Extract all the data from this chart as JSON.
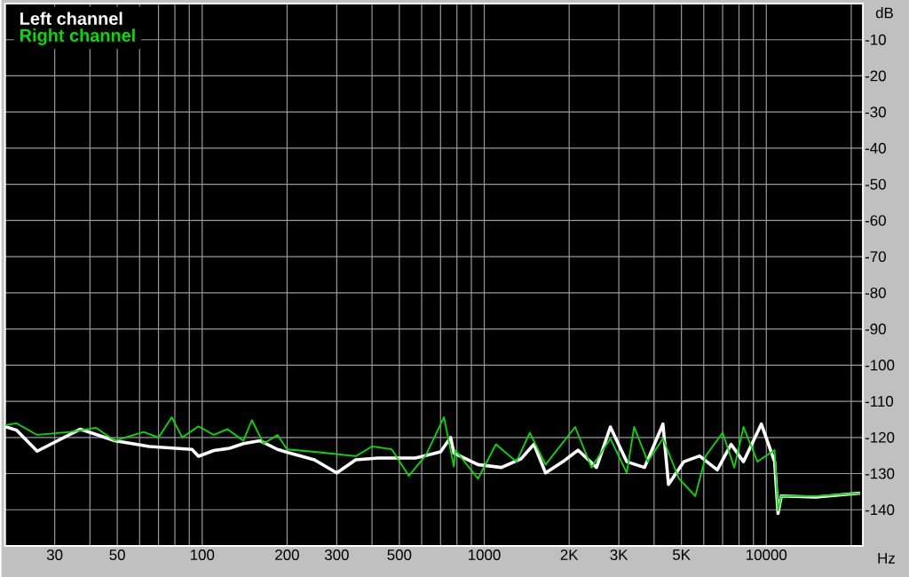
{
  "chart_data": {
    "type": "line",
    "xlabel": "Hz",
    "ylabel": "dB",
    "log": "x",
    "grid": true,
    "legend": "top left",
    "marker": "none",
    "xlim": [
      20,
      22000
    ],
    "ylim": [
      -150,
      0
    ],
    "xticks": [
      {
        "value": 20,
        "label": null
      },
      30,
      {
        "value": 40,
        "label": null
      },
      50,
      {
        "value": 60,
        "label": null
      },
      {
        "value": 70,
        "label": null
      },
      {
        "value": 80,
        "label": null
      },
      {
        "value": 90,
        "label": null
      },
      100,
      200,
      300,
      {
        "value": 400,
        "label": null
      },
      500,
      {
        "value": 600,
        "label": null
      },
      {
        "value": 700,
        "label": null
      },
      {
        "value": 800,
        "label": null
      },
      {
        "value": 900,
        "label": null
      },
      1000,
      {
        "value": 2000,
        "label": "2K"
      },
      {
        "value": 3000,
        "label": "3K"
      },
      {
        "value": 4000,
        "label": null
      },
      {
        "value": 5000,
        "label": "5K"
      },
      {
        "value": 6000,
        "label": null
      },
      {
        "value": 7000,
        "label": null
      },
      {
        "value": 8000,
        "label": null
      },
      {
        "value": 9000,
        "label": null
      },
      10000,
      {
        "value": 20000,
        "label": null
      }
    ],
    "yticks": [
      -10,
      -20,
      -30,
      -40,
      -50,
      -60,
      -70,
      -80,
      -90,
      -100,
      -110,
      -120,
      -130,
      -140
    ],
    "series": [
      {
        "name": "Left channel",
        "color": "#ffffff",
        "x": [
          20,
          22,
          26,
          37,
          49,
          65,
          92,
          97,
          110,
          125,
          140,
          160,
          185,
          200,
          250,
          300,
          350,
          420,
          570,
          700,
          760,
          780,
          950,
          1150,
          1350,
          1500,
          1650,
          1900,
          2150,
          2500,
          2800,
          3200,
          3700,
          4300,
          4500,
          5100,
          5800,
          6700,
          7500,
          8300,
          9600,
          10700,
          11000,
          11300,
          15000,
          21500
        ],
        "values": [
          -117,
          -118,
          -123.8,
          -117.7,
          -120.9,
          -122.5,
          -123.3,
          -125.2,
          -123.6,
          -123,
          -121.7,
          -120.9,
          -123.3,
          -124.1,
          -126.2,
          -129.8,
          -126.2,
          -125.7,
          -125.7,
          -124,
          -120,
          -124.3,
          -127.5,
          -128.3,
          -125.9,
          -121.9,
          -129.8,
          -126.7,
          -123.5,
          -128.3,
          -117.1,
          -126.7,
          -128.3,
          -116.3,
          -133,
          -126.7,
          -125.1,
          -129,
          -121.9,
          -126.7,
          -116.3,
          -126.7,
          -141,
          -136.2,
          -136.5,
          -135.4
        ]
      },
      {
        "name": "Right channel",
        "color": "#00e000",
        "x": [
          20,
          22,
          26,
          34,
          42,
          49,
          62,
          70,
          78,
          85,
          97,
          110,
          123,
          140,
          150,
          165,
          185,
          200,
          260,
          350,
          400,
          470,
          540,
          620,
          720,
          780,
          790,
          950,
          1100,
          1300,
          1450,
          1650,
          2100,
          2400,
          2800,
          3200,
          3400,
          3800,
          4300,
          4900,
          5600,
          6100,
          7000,
          7700,
          8300,
          9300,
          10700,
          11000,
          11300,
          15000,
          21500
        ],
        "values": [
          -116.6,
          -116.1,
          -119.3,
          -118.5,
          -117.3,
          -120.9,
          -118.5,
          -120,
          -114.4,
          -120,
          -116.9,
          -119.3,
          -117.7,
          -120.9,
          -115.2,
          -121.7,
          -119.3,
          -123.3,
          -124.1,
          -125.2,
          -122.5,
          -123.3,
          -130.6,
          -125,
          -114.4,
          -128,
          -123.5,
          -131.4,
          -121.9,
          -126.7,
          -118.7,
          -127.5,
          -117.1,
          -128.3,
          -120.3,
          -129.8,
          -117.1,
          -126.7,
          -120.3,
          -131.4,
          -136.2,
          -125.1,
          -118.7,
          -128.3,
          -117.1,
          -126.7,
          -123.5,
          -140.2,
          -136.2,
          -136.2,
          -135.4
        ]
      }
    ]
  }
}
